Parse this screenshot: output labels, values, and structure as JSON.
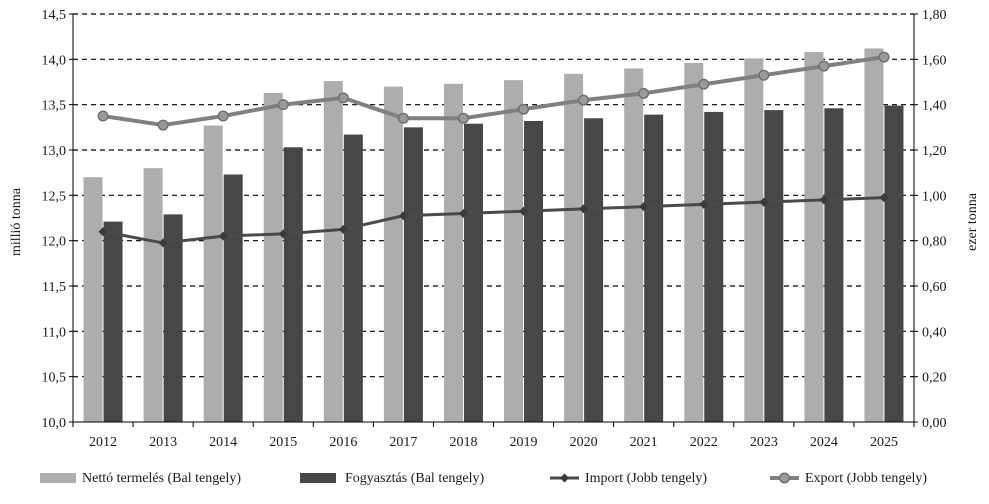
{
  "chart_data": {
    "type": "bar",
    "categories": [
      "2012",
      "2013",
      "2014",
      "2015",
      "2016",
      "2017",
      "2018",
      "2019",
      "2020",
      "2021",
      "2022",
      "2023",
      "2024",
      "2025"
    ],
    "series": [
      {
        "name": "Nettó termelés (Bal tengely)",
        "kind": "bar",
        "axis": "left",
        "color": "#adadad",
        "values": [
          12.7,
          12.8,
          13.27,
          13.63,
          13.76,
          13.7,
          13.73,
          13.77,
          13.84,
          13.9,
          13.96,
          14.01,
          14.08,
          14.12
        ]
      },
      {
        "name": "Fogyasztás (Bal tengely)",
        "kind": "bar",
        "axis": "left",
        "color": "#474747",
        "values": [
          12.21,
          12.29,
          12.73,
          13.03,
          13.17,
          13.25,
          13.29,
          13.32,
          13.35,
          13.39,
          13.42,
          13.44,
          13.46,
          13.49
        ]
      },
      {
        "name": "Import (Jobb tengely)",
        "kind": "line",
        "axis": "right",
        "color": "#4a4a4a",
        "marker": "diamond",
        "values": [
          0.84,
          0.79,
          0.82,
          0.83,
          0.85,
          0.91,
          0.92,
          0.93,
          0.94,
          0.95,
          0.96,
          0.97,
          0.98,
          0.99
        ]
      },
      {
        "name": "Export (Jobb tengely)",
        "kind": "line",
        "axis": "right",
        "color": "#808080",
        "marker": "circle",
        "values": [
          1.35,
          1.31,
          1.35,
          1.4,
          1.43,
          1.34,
          1.34,
          1.38,
          1.42,
          1.45,
          1.49,
          1.53,
          1.57,
          1.61
        ]
      }
    ],
    "ylabel": "millió tonna",
    "y2label": "ezer tonna",
    "ylim": [
      10.0,
      14.5
    ],
    "y2lim": [
      0.0,
      1.8
    ],
    "yticks": [
      "10,0",
      "10,5",
      "11,0",
      "11,5",
      "12,0",
      "12,5",
      "13,0",
      "13,5",
      "14,0",
      "14,5"
    ],
    "y2ticks": [
      "0,00",
      "0,20",
      "0,40",
      "0,60",
      "0,80",
      "1,00",
      "1,20",
      "1,40",
      "1,60",
      "1,80"
    ],
    "grid": true,
    "legend_position": "bottom"
  }
}
